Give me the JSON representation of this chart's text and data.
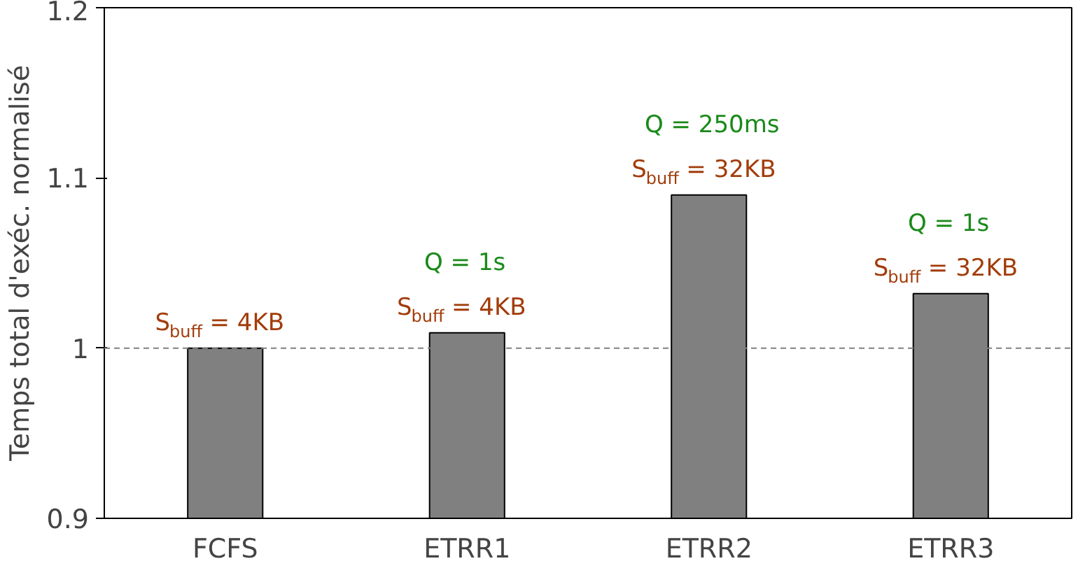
{
  "chart_data": {
    "type": "bar",
    "ylabel": "Temps total d'exéc. normalisé",
    "categories": [
      "FCFS",
      "ETRR1",
      "ETRR2",
      "ETRR3"
    ],
    "values": [
      1.0,
      1.009,
      1.09,
      1.032
    ],
    "color": "#808080",
    "ylim": [
      0.9,
      1.2
    ],
    "yticks": [
      {
        "value": 0.9,
        "label": "0.9"
      },
      {
        "value": 1.0,
        "label": "1"
      },
      {
        "value": 1.1,
        "label": "1.1"
      },
      {
        "value": 1.2,
        "label": "1.2"
      }
    ],
    "grid": false,
    "ref_lines": [
      {
        "axis": "y",
        "value": 1.0,
        "color": "#808080",
        "line_style": "dashed"
      }
    ],
    "annotations": [
      "S$_{buff}$ = 4KB",
      "Q = 1s",
      "S$_{buff}$ = 4KB",
      "Q = 250ms",
      "S$_{buff}$ = 32KB",
      "Q = 1s",
      "S$_{buff}$ = 32KB"
    ]
  }
}
